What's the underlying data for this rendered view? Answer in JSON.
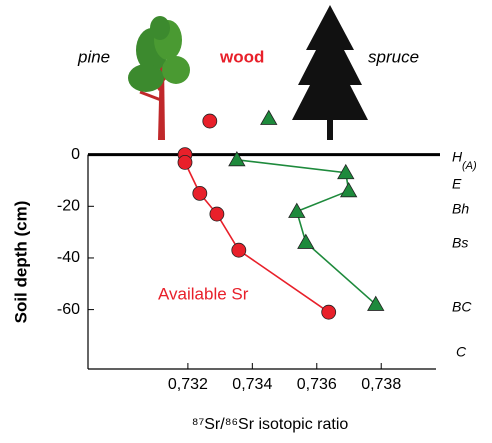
{
  "chart_data": {
    "type": "line",
    "xlabel": "⁸⁷Sr/⁸⁶Sr isotopic ratio",
    "ylabel": "Soil depth (cm)",
    "annotations": {
      "pine": "pine",
      "wood": "wood",
      "spruce": "spruce"
    },
    "horizons": [
      "H",
      "(A)",
      "E",
      "Bh",
      "Bs",
      "BC",
      "C"
    ],
    "xlim": [
      0.7289,
      0.7397
    ],
    "ylim": [
      -83,
      20
    ],
    "xticks": [
      {
        "value": 0.732,
        "label": "0,732"
      },
      {
        "value": 0.734,
        "label": "0,734"
      },
      {
        "value": 0.736,
        "label": "0,736"
      },
      {
        "value": 0.738,
        "label": "0,738"
      }
    ],
    "yticks": [
      0,
      -20,
      -40,
      -60
    ],
    "series": [
      {
        "name": "Available Sr",
        "color": "#e8202a",
        "marker": "circle",
        "x": [
          0.73191,
          0.73191,
          0.73237,
          0.7329,
          0.73358,
          0.73637
        ],
        "values": [
          0,
          -3,
          -15,
          -23,
          -37,
          -61
        ],
        "wood_x": 0.73268,
        "wood_y": 13
      },
      {
        "color": "#1e8a3c",
        "marker": "triangle",
        "x": [
          0.73352,
          0.7369,
          0.73699,
          0.73538,
          0.73566,
          0.73783
        ],
        "values": [
          -2,
          -7,
          -14,
          -22,
          -34,
          -58
        ],
        "wood_x": 0.73451,
        "wood_y": 14
      }
    ]
  }
}
